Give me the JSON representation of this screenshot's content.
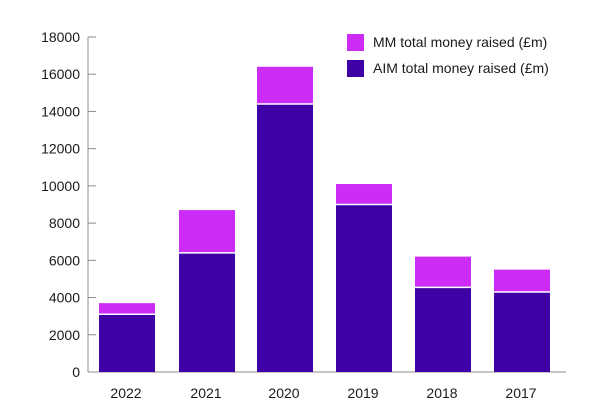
{
  "chart_data": {
    "type": "bar",
    "stacked": true,
    "categories": [
      "2022",
      "2021",
      "2020",
      "2019",
      "2018",
      "2017"
    ],
    "series": [
      {
        "name": "AIM total money raised (£m)",
        "color": "#3f00a6",
        "values": [
          3100,
          6400,
          14400,
          9000,
          4550,
          4300
        ]
      },
      {
        "name": "MM total money raised (£m)",
        "color": "#cc2cf5",
        "values": [
          600,
          2300,
          2000,
          1100,
          1650,
          1200
        ]
      }
    ],
    "legend": [
      {
        "label": "MM total money raised (£m)",
        "color": "#cc2cf5"
      },
      {
        "label": "AIM total money raised (£m)",
        "color": "#3f00a6"
      }
    ],
    "legend_position": "top-right",
    "title": "",
    "xlabel": "",
    "ylabel": "",
    "ylim": [
      0,
      18000
    ],
    "yticks": [
      "0",
      "2000",
      "4000",
      "6000",
      "8000",
      "10000",
      "12000",
      "14000",
      "16000",
      "18000"
    ],
    "grid": false
  }
}
